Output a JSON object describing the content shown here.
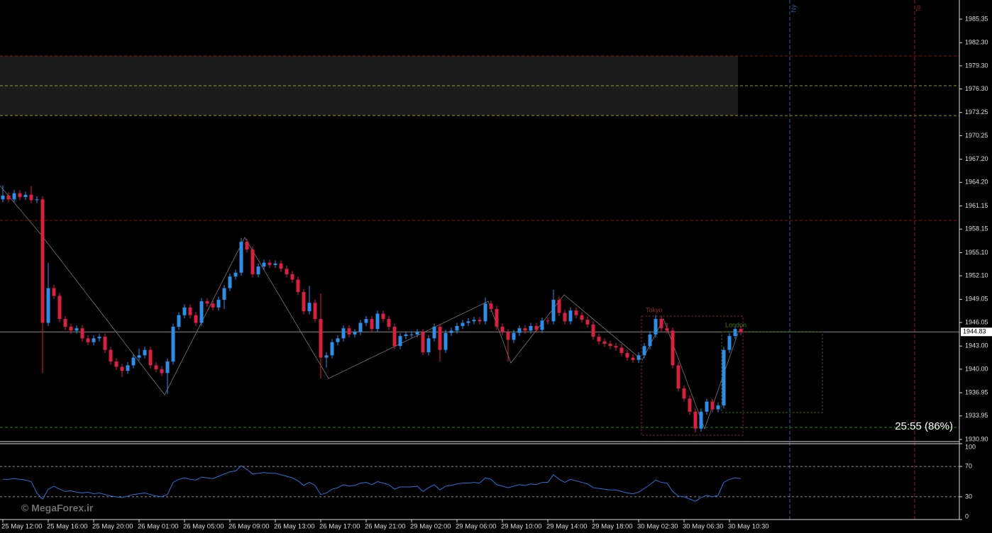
{
  "chart_data": [
    {
      "type": "candlestick",
      "up_color": "#2a8fe8",
      "down_color": "#dc1f3e",
      "ylim": [
        1930.9,
        1985.35
      ],
      "yticks": [
        1985.35,
        {
          "value": 1982.3,
          "label": "1982.30"
        },
        {
          "value": 1979.3,
          "label": "1979.30"
        },
        {
          "value": 1976.3,
          "label": "1976.30"
        },
        1973.25,
        1970.25,
        {
          "value": 1967.2,
          "label": "1967.20"
        },
        {
          "value": 1964.2,
          "label": "1964.20"
        },
        1961.15,
        1958.15,
        {
          "value": 1955.1,
          "label": "1955.10"
        },
        {
          "value": 1952.1,
          "label": "1952.10"
        },
        1949.05,
        1946.05,
        {
          "value": 1943,
          "label": "1943.00"
        },
        {
          "value": 1940,
          "label": "1940.00"
        },
        1936.95,
        1933.95,
        {
          "value": 1930.9,
          "label": "1930.90"
        }
      ],
      "categories": [
        "25 May 12:00",
        null,
        null,
        null,
        null,
        null,
        null,
        null,
        "25 May 16:00",
        null,
        null,
        null,
        null,
        null,
        null,
        null,
        "25 May 20:00",
        null,
        null,
        null,
        null,
        null,
        null,
        null,
        "26 May 01:00",
        null,
        null,
        null,
        null,
        null,
        null,
        null,
        "26 May 05:00",
        null,
        null,
        null,
        null,
        null,
        null,
        null,
        "26 May 09:00",
        null,
        null,
        null,
        null,
        null,
        null,
        null,
        "26 May 13:00",
        null,
        null,
        null,
        null,
        null,
        null,
        null,
        "26 May 17:00",
        null,
        null,
        null,
        null,
        null,
        null,
        null,
        "26 May 21:00",
        null,
        null,
        null,
        null,
        null,
        null,
        null,
        "29 May 02:00",
        null,
        null,
        null,
        null,
        null,
        null,
        null,
        "29 May 06:00",
        null,
        null,
        null,
        null,
        null,
        null,
        null,
        "29 May 10:00",
        null,
        null,
        null,
        null,
        null,
        null,
        null,
        "29 May 14:00",
        null,
        null,
        null,
        null,
        null,
        null,
        null,
        "29 May 18:00",
        null,
        null,
        null,
        null,
        null,
        null,
        null,
        "30 May 02:30",
        null,
        null,
        null,
        null,
        null,
        null,
        null,
        "30 May 06:30",
        null,
        null,
        null,
        null,
        null,
        null,
        null,
        "30 May 10:30",
        null,
        null
      ],
      "open": [
        1962.0,
        1962.5,
        1962.0,
        1962.8,
        1962.3,
        1962.6,
        1961.9,
        1962.0,
        1946.0,
        1950.5,
        1949.5,
        1946.5,
        1945.5,
        1945.0,
        1945.3,
        1944.0,
        1943.5,
        1944.0,
        1944.2,
        1942.5,
        1941.0,
        1940.3,
        1939.8,
        1940.5,
        1941.5,
        1941.8,
        1942.5,
        1940.5,
        1940.0,
        1939.5,
        1941.0,
        1945.5,
        1947.0,
        1948.0,
        1947.0,
        1946.0,
        1948.8,
        1948.5,
        1948.0,
        1949.0,
        1950.5,
        1952.0,
        1952.5,
        1956.5,
        1955.5,
        1952.3,
        1953.3,
        1953.8,
        1953.5,
        1953.7,
        1953.0,
        1952.3,
        1951.6,
        1950.0,
        1947.5,
        1948.6,
        1946.5,
        1941.5,
        1941.8,
        1943.5,
        1944.0,
        1945.3,
        1944.5,
        1944.8,
        1946.0,
        1946.5,
        1945.2,
        1947.2,
        1946.5,
        1945.5,
        1943.0,
        1944.3,
        1944.5,
        1944.5,
        1944.8,
        1942.2,
        1944.0,
        1945.5,
        1942.5,
        1944.7,
        1945.0,
        1945.6,
        1946.0,
        1946.2,
        1946.4,
        1946.2,
        1948.5,
        1947.8,
        1945.5,
        1944.8,
        1943.8,
        1944.7,
        1945.3,
        1945.0,
        1945.6,
        1945.1,
        1946.3,
        1946.2,
        1949.0,
        1947.3,
        1946.2,
        1947.6,
        1947.0,
        1946.4,
        1945.8,
        1944.2,
        1943.6,
        1943.3,
        1943.0,
        1942.8,
        1942.1,
        1941.5,
        1941.2,
        1941.8,
        1943.0,
        1944.5,
        1946.5,
        1945.3,
        1945.0,
        1940.5,
        1937.5,
        1936.2,
        1934.5,
        1932.3,
        1934.5,
        1935.8,
        1934.8,
        1935.3,
        1942.5,
        1944.3,
        1945.2
      ],
      "high": [
        1963.8,
        1962.9,
        1963.2,
        1963.2,
        1963.0,
        1963.7,
        1962.4,
        1962.4,
        1953.8,
        1950.9,
        1949.9,
        1946.9,
        1945.9,
        1945.7,
        1945.7,
        1944.4,
        1944.4,
        1944.6,
        1944.6,
        1942.9,
        1941.4,
        1940.7,
        1940.9,
        1941.9,
        1942.7,
        1942.9,
        1942.9,
        1940.9,
        1940.4,
        1941.4,
        1945.9,
        1947.4,
        1948.4,
        1948.4,
        1947.4,
        1949.2,
        1949.2,
        1948.9,
        1949.4,
        1950.9,
        1952.4,
        1952.9,
        1957.0,
        1956.9,
        1955.9,
        1953.7,
        1954.2,
        1954.2,
        1954.1,
        1954.1,
        1953.4,
        1952.7,
        1952.0,
        1950.4,
        1950.8,
        1949.0,
        1949.8,
        1942.2,
        1943.9,
        1944.4,
        1945.7,
        1945.7,
        1945.2,
        1946.4,
        1946.9,
        1946.9,
        1947.6,
        1947.6,
        1946.9,
        1945.9,
        1944.7,
        1944.9,
        1944.9,
        1945.2,
        1945.2,
        1944.4,
        1945.9,
        1945.9,
        1945.1,
        1945.4,
        1946.0,
        1946.4,
        1946.6,
        1946.8,
        1946.8,
        1949.3,
        1948.9,
        1948.2,
        1945.9,
        1945.2,
        1945.1,
        1945.7,
        1945.7,
        1946.0,
        1946.0,
        1946.7,
        1946.7,
        1950.3,
        1949.4,
        1947.7,
        1948.0,
        1948.0,
        1947.4,
        1946.8,
        1946.2,
        1944.6,
        1944.0,
        1943.7,
        1943.4,
        1943.2,
        1942.5,
        1941.9,
        1942.2,
        1943.4,
        1944.9,
        1947.0,
        1946.9,
        1946.0,
        1945.4,
        1940.9,
        1937.9,
        1936.6,
        1934.9,
        1934.9,
        1936.2,
        1936.2,
        1935.7,
        1942.9,
        1944.7,
        1945.6,
        1945.6
      ],
      "low": [
        1961.6,
        1961.6,
        1961.6,
        1961.9,
        1961.9,
        1961.5,
        1961.5,
        1939.5,
        1945.6,
        1949.1,
        1946.1,
        1945.1,
        1944.6,
        1944.6,
        1943.6,
        1943.1,
        1943.1,
        1943.6,
        1942.1,
        1940.6,
        1939.9,
        1939.0,
        1939.4,
        1940.1,
        1941.1,
        1941.4,
        1940.1,
        1939.6,
        1939.1,
        1936.8,
        1940.6,
        1945.1,
        1946.6,
        1946.6,
        1945.6,
        1945.6,
        1948.1,
        1947.6,
        1947.6,
        1947.8,
        1950.1,
        1951.6,
        1952.1,
        1955.1,
        1951.9,
        1951.9,
        1952.9,
        1953.1,
        1953.1,
        1952.6,
        1951.9,
        1951.2,
        1949.6,
        1947.1,
        1947.1,
        1946.1,
        1938.8,
        1940.2,
        1941.4,
        1943.1,
        1943.6,
        1944.1,
        1944.1,
        1944.4,
        1945.6,
        1944.8,
        1944.8,
        1946.1,
        1945.1,
        1942.6,
        1942.6,
        1943.9,
        1944.1,
        1944.1,
        1941.8,
        1941.8,
        1943.6,
        1941.0,
        1942.1,
        1944.3,
        1944.6,
        1945.2,
        1945.6,
        1945.8,
        1945.8,
        1945.8,
        1947.4,
        1945.1,
        1944.4,
        1941.0,
        1943.4,
        1944.3,
        1944.6,
        1944.6,
        1944.7,
        1944.7,
        1945.8,
        1945.8,
        1946.9,
        1945.8,
        1945.8,
        1946.6,
        1946.0,
        1945.4,
        1943.8,
        1943.2,
        1942.9,
        1942.6,
        1942.4,
        1941.7,
        1941.1,
        1940.8,
        1940.8,
        1941.4,
        1942.6,
        1944.1,
        1944.9,
        1944.6,
        1940.1,
        1937.1,
        1935.8,
        1934.1,
        1931.8,
        1931.9,
        1934.1,
        1934.4,
        1934.4,
        1934.9,
        1942.1,
        1943.9,
        1944.4
      ],
      "close": [
        1962.5,
        1962.0,
        1962.8,
        1962.3,
        1962.6,
        1961.9,
        1962.0,
        1946.0,
        1950.5,
        1949.5,
        1946.5,
        1945.5,
        1945.0,
        1945.3,
        1944.0,
        1943.5,
        1944.0,
        1944.2,
        1942.5,
        1941.0,
        1940.3,
        1939.8,
        1940.5,
        1941.5,
        1941.8,
        1942.5,
        1940.5,
        1940.0,
        1939.5,
        1941.0,
        1945.5,
        1947.0,
        1948.0,
        1947.0,
        1946.0,
        1948.8,
        1948.5,
        1948.0,
        1949.0,
        1950.5,
        1952.0,
        1952.5,
        1956.5,
        1955.5,
        1952.3,
        1953.3,
        1953.8,
        1953.5,
        1953.7,
        1953.0,
        1952.3,
        1951.6,
        1950.0,
        1947.5,
        1948.6,
        1946.5,
        1941.5,
        1941.8,
        1943.5,
        1944.0,
        1945.3,
        1944.5,
        1944.8,
        1946.0,
        1946.5,
        1945.2,
        1947.2,
        1946.5,
        1945.5,
        1943.0,
        1944.3,
        1944.5,
        1944.5,
        1944.8,
        1942.2,
        1944.0,
        1945.5,
        1942.5,
        1944.7,
        1945.0,
        1945.6,
        1946.0,
        1946.2,
        1946.4,
        1946.2,
        1948.5,
        1947.8,
        1945.5,
        1944.8,
        1943.8,
        1944.7,
        1945.3,
        1945.0,
        1945.6,
        1945.1,
        1946.3,
        1946.2,
        1949.0,
        1947.3,
        1946.2,
        1947.6,
        1947.0,
        1946.4,
        1945.8,
        1944.2,
        1943.6,
        1943.3,
        1943.0,
        1942.8,
        1942.1,
        1941.5,
        1941.2,
        1941.8,
        1943.0,
        1944.5,
        1946.5,
        1945.3,
        1945.0,
        1940.5,
        1937.5,
        1936.2,
        1934.5,
        1932.3,
        1934.5,
        1935.8,
        1934.8,
        1935.3,
        1942.5,
        1944.3,
        1945.2,
        1944.83
      ],
      "levels": [
        {
          "value": 1980.58,
          "color": "#a01010"
        },
        {
          "value": 1976.72,
          "color": "#a8a820"
        },
        {
          "value": 1972.86,
          "color": "#a8a820"
        },
        {
          "value": 1959.27,
          "color": "#a01010"
        },
        {
          "value": 1932.46,
          "color": "#2e7d2e"
        }
      ],
      "sessions": [
        {
          "label": "Tokyo",
          "color": "#8b2a2a"
        },
        {
          "label": "London",
          "color": "#3a7a1a"
        }
      ],
      "verticals": [
        {
          "label": "Ny",
          "color": "#2f5f8f"
        },
        {
          "label": "To",
          "color": "#8b2020"
        }
      ],
      "timer": "25:55 (86%)"
    },
    {
      "type": "line",
      "ylim": [
        0,
        100
      ],
      "yticks": [
        100,
        70,
        30,
        0
      ],
      "series": [
        {
          "color": "#2f6fd6",
          "values": [
            53,
            53,
            54,
            53,
            52,
            50,
            35,
            27,
            40,
            44,
            40,
            37,
            38,
            36,
            35,
            36,
            34,
            35,
            33,
            31,
            30,
            29,
            31,
            33,
            34,
            35,
            33,
            31,
            30,
            33,
            49,
            53,
            55,
            53,
            52,
            56,
            55,
            54,
            57,
            60,
            63,
            64,
            71,
            66,
            60,
            61,
            62,
            61,
            61,
            59,
            57,
            55,
            51,
            45,
            49,
            45,
            33,
            35,
            40,
            42,
            46,
            44,
            45,
            48,
            49,
            46,
            50,
            48,
            46,
            40,
            43,
            43,
            43,
            44,
            37,
            42,
            46,
            39,
            44,
            45,
            47,
            48,
            48,
            49,
            48,
            55,
            53,
            46,
            44,
            42,
            44,
            46,
            45,
            47,
            46,
            49,
            49,
            59,
            53,
            49,
            53,
            51,
            49,
            47,
            42,
            41,
            40,
            39,
            39,
            37,
            35,
            34,
            36,
            41,
            46,
            52,
            49,
            48,
            37,
            31,
            30,
            27,
            24,
            29,
            32,
            30,
            32,
            49,
            53,
            55,
            54
          ]
        }
      ]
    }
  ],
  "watermark": "© MegaForex.ir"
}
